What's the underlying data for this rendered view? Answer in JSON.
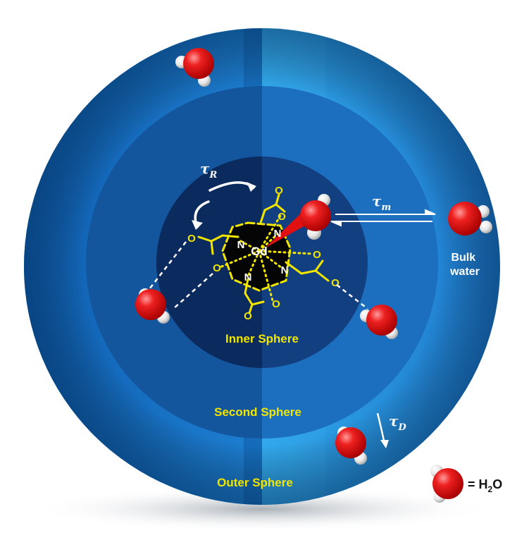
{
  "labels": {
    "inner_sphere": "Inner Sphere",
    "second_sphere": "Second Sphere",
    "outer_sphere": "Outer Sphere",
    "bulk_water_line1": "Bulk",
    "bulk_water_line2": "water",
    "legend_eq": "= H",
    "legend_sub": "2",
    "legend_o": "O"
  },
  "symbols": {
    "tau": "τ",
    "tau_R_sub": "R",
    "tau_m_sub": "m",
    "tau_D_sub": "D",
    "metal": "Gd",
    "nitrogen": "N",
    "oxygen": "O"
  },
  "colors": {
    "outer_sphere": "#1f78c8",
    "second_sphere": "#1560a8",
    "inner_sphere": "#0c2f6a",
    "label_yellow": "#f2e600",
    "oxygen_red": "#e01010",
    "hydrogen_white": "#f4f4f4"
  }
}
